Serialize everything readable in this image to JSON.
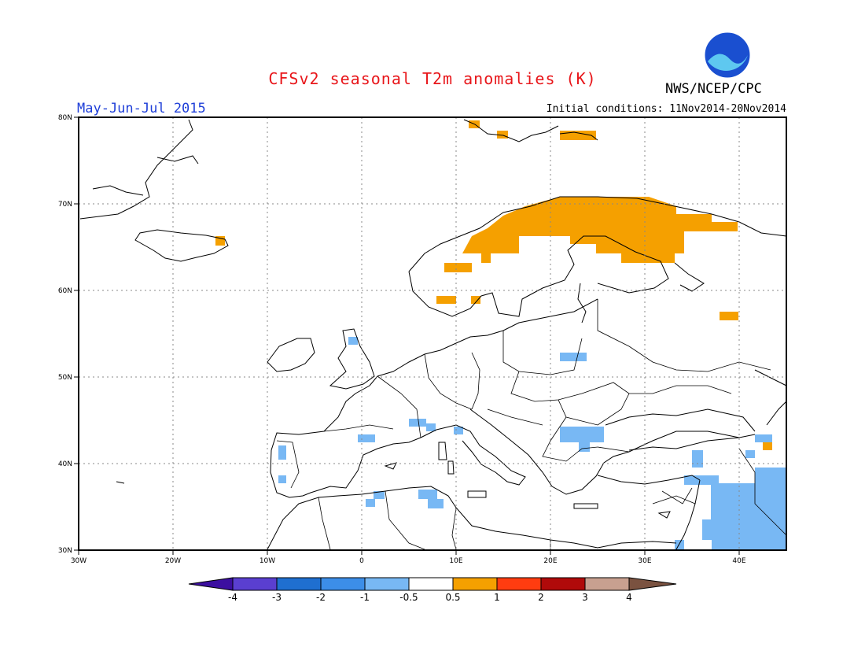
{
  "title": "CFSv2 seasonal T2m anomalies (K)",
  "agency": "NWS/NCEP/CPC",
  "logo_text": "NOAA",
  "period": "May-Jun-Jul 2015",
  "initial_conditions": "Initial conditions: 11Nov2014-20Nov2014",
  "lat_labels": [
    "80N",
    "70N",
    "60N",
    "50N",
    "40N",
    "30N"
  ],
  "lon_labels": [
    "30W",
    "20W",
    "10W",
    "0",
    "10E",
    "20E",
    "30E",
    "40E"
  ],
  "colorbar": {
    "labels": [
      "-4",
      "-3",
      "-2",
      "-1",
      "-0.5",
      "0.5",
      "1",
      "2",
      "3",
      "4"
    ],
    "colors": [
      "#3c0fa0",
      "#5a3fd0",
      "#1f6fd0",
      "#3c8ee8",
      "#78b8f4",
      "#ffffff",
      "#f5a000",
      "#ff3c10",
      "#b00a0a",
      "#c8a090",
      "#7a5240"
    ]
  }
}
